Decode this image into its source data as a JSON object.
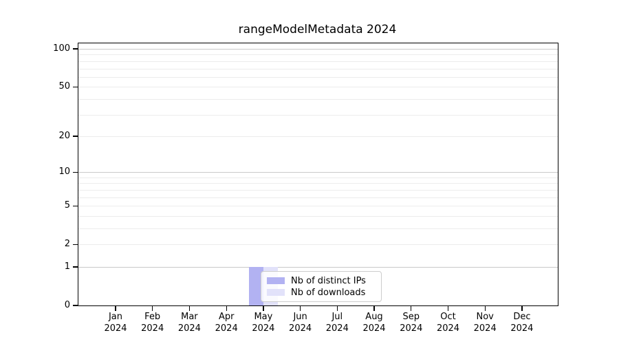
{
  "chart_data": {
    "type": "bar",
    "title": "rangeModelMetadata 2024",
    "categories": [
      "Jan 2024",
      "Feb 2024",
      "Mar 2024",
      "Apr 2024",
      "May 2024",
      "Jun 2024",
      "Jul 2024",
      "Aug 2024",
      "Sep 2024",
      "Oct 2024",
      "Nov 2024",
      "Dec 2024"
    ],
    "x_tick_labels": [
      {
        "month": "Jan",
        "year": "2024"
      },
      {
        "month": "Feb",
        "year": "2024"
      },
      {
        "month": "Mar",
        "year": "2024"
      },
      {
        "month": "Apr",
        "year": "2024"
      },
      {
        "month": "May",
        "year": "2024"
      },
      {
        "month": "Jun",
        "year": "2024"
      },
      {
        "month": "Jul",
        "year": "2024"
      },
      {
        "month": "Aug",
        "year": "2024"
      },
      {
        "month": "Sep",
        "year": "2024"
      },
      {
        "month": "Oct",
        "year": "2024"
      },
      {
        "month": "Nov",
        "year": "2024"
      },
      {
        "month": "Dec",
        "year": "2024"
      }
    ],
    "series": [
      {
        "name": "Nb of distinct IPs",
        "color": "#b2b2f2",
        "values": [
          0,
          0,
          0,
          0,
          1,
          0,
          0,
          0,
          0,
          0,
          0,
          0
        ]
      },
      {
        "name": "Nb of downloads",
        "color": "#e2e2fa",
        "values": [
          0,
          0,
          0,
          0,
          1,
          0,
          0,
          0,
          0,
          0,
          0,
          0
        ]
      }
    ],
    "y_axis": {
      "scale": "log10(value+1)",
      "major_ticks": [
        0,
        1,
        2,
        5,
        10,
        20,
        50,
        100
      ],
      "decade_gridlines": [
        1,
        10,
        100
      ],
      "minor_gridlines": [
        3,
        4,
        6,
        7,
        8,
        9,
        30,
        40,
        60,
        70,
        80,
        90
      ],
      "ylim": [
        0,
        110
      ]
    },
    "legend": {
      "position": "inside-bottom-center",
      "entries": [
        "Nb of distinct IPs",
        "Nb of downloads"
      ]
    },
    "grid": "horizontal"
  },
  "colors": {
    "background": "#ffffff",
    "axis": "#000000",
    "gridline_decade": "#c9c9c9",
    "gridline_minor": "#ececec",
    "legend_border": "#cccccc"
  }
}
